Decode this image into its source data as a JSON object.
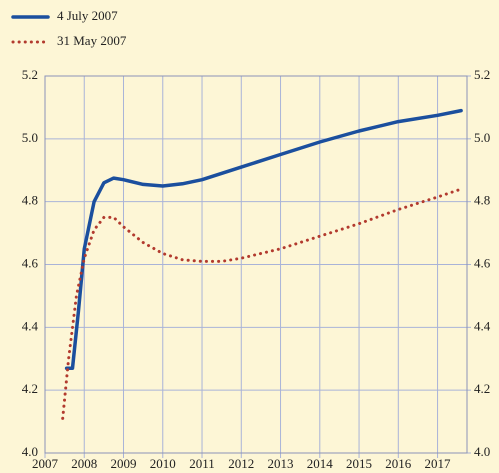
{
  "chart_data": {
    "type": "line",
    "xlim": [
      2007,
      2017.75
    ],
    "xticks": [
      2007,
      2008,
      2009,
      2010,
      2011,
      2012,
      2013,
      2014,
      2015,
      2016,
      2017
    ],
    "ylim": [
      4.0,
      5.2
    ],
    "yticks": [
      {
        "value": 4.0,
        "label": "4.0"
      },
      4.2,
      4.4,
      4.6,
      4.8,
      {
        "value": 5.0,
        "label": "5.0"
      },
      5.2
    ],
    "y2lim": [
      4.0,
      5.2
    ],
    "y2ticks": [
      {
        "value": 4.0,
        "label": "4.0"
      },
      4.2,
      4.4,
      4.6,
      4.8,
      {
        "value": 5.0,
        "label": "5.0"
      },
      5.2
    ],
    "grid": true,
    "series": [
      {
        "name": "4 July 2007",
        "color": "#1b4f9e",
        "style": "solid",
        "x": [
          2007.55,
          2007.7,
          2007.85,
          2008,
          2008.25,
          2008.5,
          2008.75,
          2009,
          2009.5,
          2010,
          2010.5,
          2011,
          2012,
          2013,
          2014,
          2015,
          2016,
          2017,
          2017.6
        ],
        "values": [
          4.27,
          4.27,
          4.45,
          4.65,
          4.8,
          4.86,
          4.875,
          4.87,
          4.855,
          4.85,
          4.857,
          4.87,
          4.91,
          4.95,
          4.99,
          5.025,
          5.055,
          5.075,
          5.09
        ]
      },
      {
        "name": "31 May 2007",
        "color": "#b23a2e",
        "style": "dotted",
        "x": [
          2007.45,
          2007.6,
          2007.8,
          2008,
          2008.25,
          2008.5,
          2008.75,
          2009,
          2009.5,
          2010,
          2010.5,
          2011,
          2011.5,
          2012,
          2013,
          2014,
          2015,
          2016,
          2017,
          2017.6
        ],
        "values": [
          4.11,
          4.3,
          4.5,
          4.62,
          4.71,
          4.75,
          4.75,
          4.72,
          4.67,
          4.635,
          4.615,
          4.61,
          4.61,
          4.62,
          4.65,
          4.69,
          4.73,
          4.775,
          4.815,
          4.84
        ]
      }
    ]
  }
}
